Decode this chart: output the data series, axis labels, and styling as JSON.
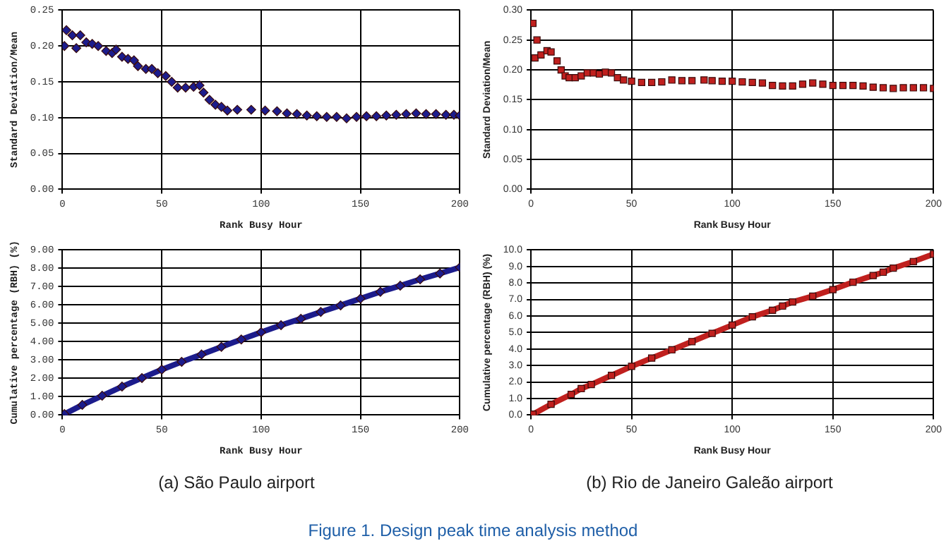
{
  "chart_data": [
    {
      "type": "scatter",
      "xlabel": "Rank Busy Hour",
      "ylabel": "Standard Deviation/Mean",
      "marker": "diamond",
      "grid": true,
      "xlim": [
        0,
        200
      ],
      "xticks": [
        0,
        50,
        100,
        150,
        200
      ],
      "ylim": [
        0,
        0.25
      ],
      "yticks": [
        {
          "value": 0,
          "label": "0.00"
        },
        {
          "value": 0.05,
          "label": "0.05"
        },
        {
          "value": 0.1,
          "label": "0.10"
        },
        {
          "value": 0.15,
          "label": "0.15"
        },
        {
          "value": 0.2,
          "label": "0.20"
        },
        {
          "value": 0.25,
          "label": "0.25"
        }
      ],
      "series": [
        {
          "color": "#1c1c8c",
          "x": [
            1,
            2,
            5,
            7,
            9,
            12,
            15,
            18,
            22,
            25,
            27,
            30,
            33,
            36,
            38,
            42,
            45,
            48,
            52,
            55,
            58,
            62,
            66,
            69,
            71,
            74,
            77,
            80,
            83,
            88,
            95,
            102,
            108,
            113,
            118,
            123,
            128,
            133,
            138,
            143,
            148,
            153,
            158,
            163,
            168,
            173,
            178,
            183,
            188,
            193,
            197,
            200
          ],
          "values": [
            0.2,
            0.222,
            0.215,
            0.197,
            0.215,
            0.205,
            0.203,
            0.2,
            0.193,
            0.19,
            0.195,
            0.185,
            0.182,
            0.18,
            0.172,
            0.168,
            0.168,
            0.162,
            0.158,
            0.15,
            0.142,
            0.142,
            0.143,
            0.145,
            0.135,
            0.125,
            0.118,
            0.115,
            0.11,
            0.111,
            0.111,
            0.11,
            0.109,
            0.106,
            0.105,
            0.103,
            0.102,
            0.101,
            0.101,
            0.099,
            0.101,
            0.102,
            0.102,
            0.103,
            0.104,
            0.105,
            0.106,
            0.105,
            0.105,
            0.104,
            0.104,
            0.103
          ]
        }
      ]
    },
    {
      "type": "scatter",
      "xlabel": "Rank Busy Hour",
      "ylabel": "Standard Deviation/Mean",
      "marker": "square",
      "grid": true,
      "xlim": [
        0,
        200
      ],
      "xticks": [
        0,
        50,
        100,
        150,
        200
      ],
      "ylim": [
        0,
        0.3
      ],
      "yticks": [
        {
          "value": 0,
          "label": "0.00"
        },
        {
          "value": 0.05,
          "label": "0.05"
        },
        {
          "value": 0.1,
          "label": "0.10"
        },
        {
          "value": 0.15,
          "label": "0.15"
        },
        {
          "value": 0.2,
          "label": "0.20"
        },
        {
          "value": 0.25,
          "label": "0.25"
        },
        {
          "value": 0.3,
          "label": "0.30"
        }
      ],
      "series": [
        {
          "color": "#c0201e",
          "x": [
            1,
            2,
            3,
            5,
            8,
            10,
            13,
            15,
            17,
            19,
            22,
            25,
            28,
            31,
            34,
            37,
            40,
            43,
            46,
            50,
            55,
            60,
            65,
            70,
            75,
            80,
            86,
            90,
            95,
            100,
            105,
            110,
            115,
            120,
            125,
            130,
            135,
            140,
            145,
            150,
            155,
            160,
            165,
            170,
            175,
            180,
            185,
            190,
            195,
            200
          ],
          "values": [
            0.278,
            0.22,
            0.25,
            0.225,
            0.232,
            0.23,
            0.215,
            0.2,
            0.19,
            0.187,
            0.187,
            0.19,
            0.195,
            0.195,
            0.193,
            0.196,
            0.195,
            0.187,
            0.183,
            0.181,
            0.179,
            0.179,
            0.18,
            0.183,
            0.182,
            0.182,
            0.183,
            0.182,
            0.181,
            0.181,
            0.18,
            0.179,
            0.178,
            0.174,
            0.173,
            0.173,
            0.176,
            0.178,
            0.176,
            0.174,
            0.174,
            0.174,
            0.173,
            0.171,
            0.17,
            0.169,
            0.17,
            0.17,
            0.17,
            0.169
          ]
        }
      ]
    },
    {
      "type": "line",
      "xlabel": "Rank Busy Hour",
      "ylabel": "Cumulative percentage (RBH) (%)",
      "marker": "diamond",
      "grid": true,
      "xlim": [
        0,
        200
      ],
      "xticks": [
        0,
        50,
        100,
        150,
        200
      ],
      "ylim": [
        0,
        9
      ],
      "yticks": [
        {
          "value": 0,
          "label": "0.00"
        },
        {
          "value": 1,
          "label": "1.00"
        },
        {
          "value": 2,
          "label": "2.00"
        },
        {
          "value": 3,
          "label": "3.00"
        },
        {
          "value": 4,
          "label": "4.00"
        },
        {
          "value": 5,
          "label": "5.00"
        },
        {
          "value": 6,
          "label": "6.00"
        },
        {
          "value": 7,
          "label": "7.00"
        },
        {
          "value": 8,
          "label": "8.00"
        },
        {
          "value": 9,
          "label": "9.00"
        }
      ],
      "annotations": [
        "(a) São Paulo airport"
      ],
      "series": [
        {
          "color": "#1c1c8c",
          "x": [
            1,
            10,
            20,
            30,
            40,
            50,
            60,
            70,
            80,
            90,
            100,
            110,
            120,
            130,
            140,
            150,
            160,
            170,
            180,
            190,
            200
          ],
          "values": [
            0.05,
            0.55,
            1.05,
            1.55,
            2.02,
            2.48,
            2.9,
            3.3,
            3.72,
            4.12,
            4.52,
            4.9,
            5.25,
            5.62,
            5.98,
            6.35,
            6.72,
            7.05,
            7.4,
            7.72,
            8.05
          ]
        }
      ]
    },
    {
      "type": "line",
      "xlabel": "Rank Busy Hour",
      "ylabel": "Cumulative percentage (RBH) (%)",
      "marker": "square",
      "grid": true,
      "xlim": [
        0,
        200
      ],
      "xticks": [
        0,
        50,
        100,
        150,
        200
      ],
      "ylim": [
        0,
        10
      ],
      "yticks": [
        {
          "value": 0,
          "label": "0.0"
        },
        {
          "value": 1,
          "label": "1.0"
        },
        {
          "value": 2,
          "label": "2.0"
        },
        {
          "value": 3,
          "label": "3.0"
        },
        {
          "value": 4,
          "label": "4.0"
        },
        {
          "value": 5,
          "label": "5.0"
        },
        {
          "value": 6,
          "label": "6.0"
        },
        {
          "value": 7,
          "label": "7.0"
        },
        {
          "value": 8,
          "label": "8.0"
        },
        {
          "value": 9,
          "label": "9.0"
        },
        {
          "value": 10,
          "label": "10.0"
        }
      ],
      "annotations": [
        "(b) Rio de Janeiro Galeão airport",
        "Figure 1. Design peak time analysis method"
      ],
      "series": [
        {
          "color": "#c0201e",
          "x": [
            1,
            10,
            20,
            25,
            30,
            40,
            50,
            60,
            70,
            80,
            90,
            100,
            110,
            120,
            125,
            130,
            140,
            150,
            160,
            170,
            175,
            180,
            190,
            200
          ],
          "values": [
            0.05,
            0.65,
            1.25,
            1.6,
            1.85,
            2.4,
            2.95,
            3.45,
            3.95,
            4.45,
            4.95,
            5.45,
            5.95,
            6.35,
            6.6,
            6.85,
            7.2,
            7.6,
            8.05,
            8.45,
            8.65,
            8.9,
            9.3,
            9.75
          ]
        }
      ]
    }
  ]
}
